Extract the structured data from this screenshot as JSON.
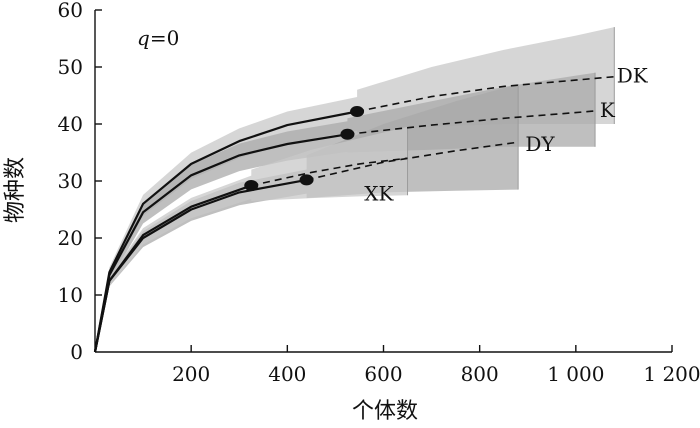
{
  "chart_data": {
    "type": "line",
    "annotation": {
      "q_text": "q",
      "eq_text": "=0"
    },
    "xlabel": "个体数",
    "ylabel": "物种数",
    "xlim": [
      0,
      1200
    ],
    "ylim": [
      0,
      60
    ],
    "x_ticks": [
      {
        "value": 200,
        "label": "200"
      },
      {
        "value": 400,
        "label": "400"
      },
      {
        "value": 600,
        "label": "600"
      },
      {
        "value": 800,
        "label": "800"
      },
      {
        "value": 1000,
        "label": "1 000"
      },
      {
        "value": 1200,
        "label": "1 200"
      }
    ],
    "y_ticks": [
      {
        "value": 0,
        "label": "0"
      },
      {
        "value": 10,
        "label": "10"
      },
      {
        "value": 20,
        "label": "20"
      },
      {
        "value": 30,
        "label": "30"
      },
      {
        "value": 40,
        "label": "40"
      },
      {
        "value": 50,
        "label": "50"
      },
      {
        "value": 60,
        "label": "60"
      }
    ],
    "grid": false,
    "colors": {
      "band_light": "#c8c8c8",
      "band_mid": "#a9a9a9",
      "band_dark": "#8c8c8c",
      "line": "#111111"
    },
    "series": [
      {
        "name": "DK",
        "observed_x": 545,
        "observed_y": 42.2,
        "end_x": 1080,
        "end_y": 48.3,
        "interp": [
          [
            0,
            0
          ],
          [
            30,
            14
          ],
          [
            100,
            26
          ],
          [
            200,
            33
          ],
          [
            300,
            37
          ],
          [
            400,
            39.8
          ],
          [
            545,
            42.2
          ]
        ],
        "extrap": [
          [
            545,
            42.2
          ],
          [
            700,
            44.8
          ],
          [
            850,
            46.6
          ],
          [
            1000,
            47.7
          ],
          [
            1080,
            48.3
          ]
        ],
        "band_upper": [
          [
            545,
            46
          ],
          [
            700,
            50
          ],
          [
            850,
            53
          ],
          [
            1000,
            55.5
          ],
          [
            1080,
            57
          ]
        ],
        "band_lower": [
          [
            545,
            38.5
          ],
          [
            700,
            39.5
          ],
          [
            850,
            40
          ],
          [
            1000,
            40
          ],
          [
            1080,
            40
          ]
        ]
      },
      {
        "name": "K",
        "observed_x": 525,
        "observed_y": 38.2,
        "end_x": 1040,
        "end_y": 42.3,
        "interp": [
          [
            0,
            0
          ],
          [
            30,
            13.5
          ],
          [
            100,
            24.5
          ],
          [
            200,
            31
          ],
          [
            300,
            34.5
          ],
          [
            400,
            36.5
          ],
          [
            525,
            38.2
          ]
        ],
        "extrap": [
          [
            525,
            38.2
          ],
          [
            700,
            39.8
          ],
          [
            850,
            41
          ],
          [
            1000,
            42
          ],
          [
            1040,
            42.3
          ]
        ],
        "band_upper": [
          [
            525,
            41
          ],
          [
            700,
            44
          ],
          [
            850,
            46.5
          ],
          [
            1000,
            48.5
          ],
          [
            1040,
            49
          ]
        ],
        "band_lower": [
          [
            525,
            35
          ],
          [
            700,
            35.5
          ],
          [
            850,
            36
          ],
          [
            1000,
            36
          ],
          [
            1040,
            36
          ]
        ]
      },
      {
        "name": "DY",
        "observed_x": 440,
        "observed_y": 30.2,
        "end_x": 880,
        "end_y": 36.8,
        "interp": [
          [
            0,
            0
          ],
          [
            30,
            12.5
          ],
          [
            100,
            20
          ],
          [
            200,
            25
          ],
          [
            300,
            28
          ],
          [
            440,
            30.2
          ]
        ],
        "extrap": [
          [
            440,
            30.2
          ],
          [
            600,
            33.3
          ],
          [
            750,
            35.3
          ],
          [
            880,
            36.8
          ]
        ],
        "band_upper": [
          [
            440,
            34.5
          ],
          [
            600,
            40
          ],
          [
            750,
            44
          ],
          [
            880,
            47
          ]
        ],
        "band_lower": [
          [
            440,
            27
          ],
          [
            600,
            28
          ],
          [
            750,
            28.3
          ],
          [
            880,
            28.5
          ]
        ]
      },
      {
        "name": "XK",
        "observed_x": 325,
        "observed_y": 29.2,
        "end_x": 650,
        "end_y": 34,
        "interp": [
          [
            0,
            0
          ],
          [
            30,
            12.5
          ],
          [
            100,
            20.5
          ],
          [
            200,
            25.5
          ],
          [
            325,
            29.2
          ]
        ],
        "extrap": [
          [
            325,
            29.2
          ],
          [
            450,
            31.5
          ],
          [
            550,
            33
          ],
          [
            650,
            34
          ]
        ],
        "band_upper": [
          [
            325,
            32
          ],
          [
            450,
            35.5
          ],
          [
            550,
            37.5
          ],
          [
            650,
            39.5
          ]
        ],
        "band_lower": [
          [
            325,
            26.5
          ],
          [
            450,
            27
          ],
          [
            550,
            27.3
          ],
          [
            650,
            27.5
          ]
        ]
      }
    ],
    "label_positions": [
      {
        "name": "DK",
        "x": 1085,
        "y": 48.5,
        "text": "DK"
      },
      {
        "name": "K",
        "x": 1050,
        "y": 42.5,
        "text": "K"
      },
      {
        "name": "DY",
        "x": 895,
        "y": 36.5,
        "text": "DY"
      },
      {
        "name": "XK",
        "x": 560,
        "y": 27.8,
        "text": "XK"
      }
    ]
  }
}
